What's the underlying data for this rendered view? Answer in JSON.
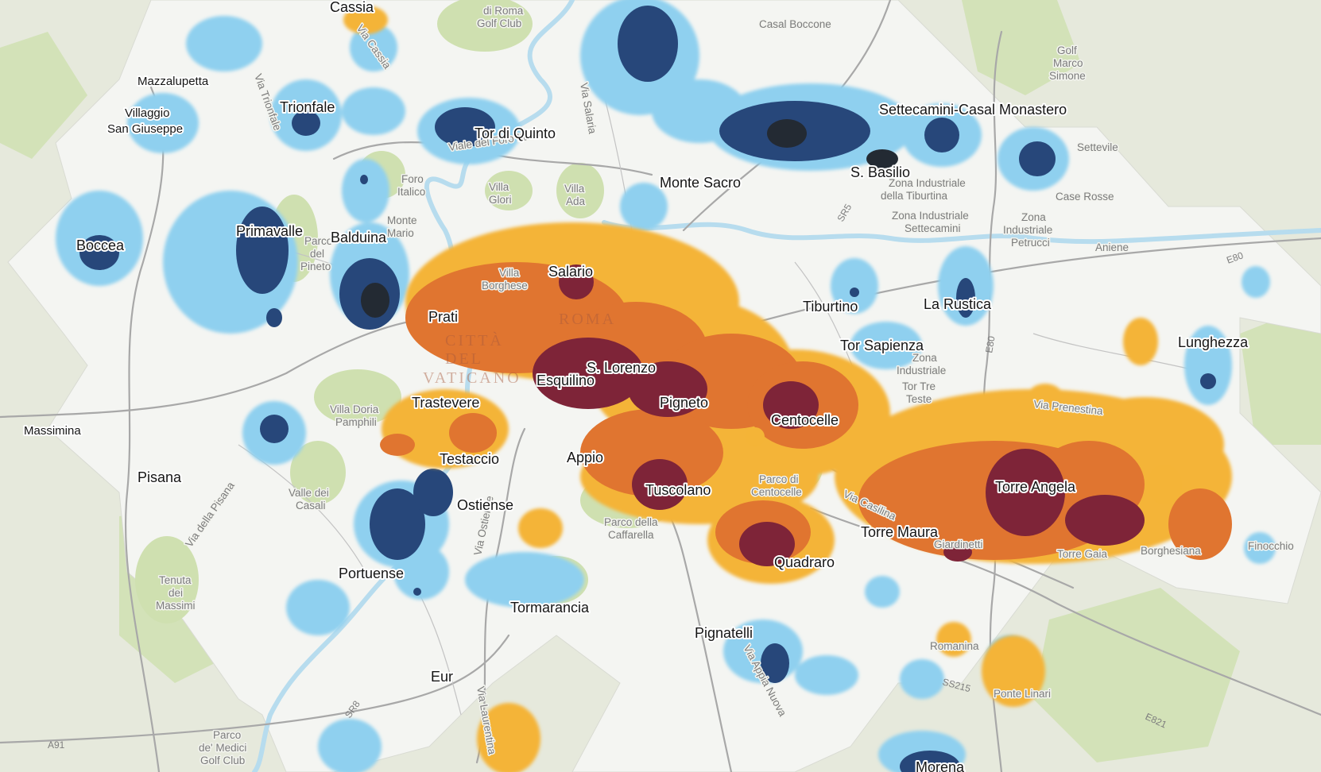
{
  "map": {
    "colors": {
      "outside": "#e6e9dc",
      "park": "#cfe0b0",
      "study_area": "#f4f5f2",
      "river": "#a9d4ea",
      "road": "#a6a6a6",
      "heat_high_4": "#7e2438",
      "heat_high_3": "#e07530",
      "heat_high_2": "#f4b437",
      "cold_1": "#8fd0ef",
      "cold_2": "#27477a",
      "cold_3": "#232a33"
    },
    "places": {
      "cassia": "Cassia",
      "mazzalupetta": "Mazzalupetta",
      "villaggio": "Villaggio",
      "san_giuseppe": "San Giuseppe",
      "trionfale": "Trionfale",
      "tor_di_quinto": "Tor di Quinto",
      "boccea": "Boccea",
      "primavalle": "Primavalle",
      "balduina": "Balduina",
      "monte_sacro": "Monte Sacro",
      "settecamini": "Settecamini-Casal Monastero",
      "s_basilio": "S. Basilio",
      "salario": "Salario",
      "prati": "Prati",
      "tiburtino": "Tiburtino",
      "la_rustica": "La Rustica",
      "tor_sapienza": "Tor Sapienza",
      "lunghezza": "Lunghezza",
      "s_lorenzo": "S. Lorenzo",
      "esquilino": "Esquilino",
      "pigneto": "Pigneto",
      "trastevere": "Trastevere",
      "centocelle": "Centocelle",
      "testaccio": "Testaccio",
      "appio": "Appio",
      "massimina": "Massimina",
      "pisana": "Pisana",
      "ostiense": "Ostiense",
      "tuscolano": "Tuscolano",
      "torre_angela": "Torre Angela",
      "torre_maura": "Torre Maura",
      "portuense": "Portuense",
      "quadraro": "Quadraro",
      "tormarancia": "Tormarancia",
      "pignatelli": "Pignatelli",
      "eur": "Eur",
      "morena": "Morena",
      "casal_boccone": "Casal Boccone",
      "settevile": "Settevile",
      "case_rosse": "Case Rosse",
      "fosso": "Finocchio",
      "ponte_linari": "Ponte Linari",
      "romanina": "Romanina",
      "via_prenestina": "Via Prenestina",
      "via_salaria": "Via Salaria",
      "via_appia_nuova": "Via Appia Nuova",
      "viale_foro_italico": "Viale del Foro Italico",
      "via_della_pisana": "Via della Pisana",
      "via_ostiense": "Via Ostiense",
      "via_laurentina": "Via Laurentina",
      "via_casilina": "Via Casilina",
      "via_trionfale": "Via Trionfale",
      "via_cassia": "Via Cassia",
      "roma": "ROMA",
      "citta_del_vaticano_1": "CITTÀ",
      "citta_del_vaticano_2": "DEL",
      "citta_del_vaticano_3": "VATICANO"
    },
    "parks": {
      "villa_borghese_1": "Villa",
      "villa_borghese_2": "Borghese",
      "villa_glori_1": "Villa",
      "villa_glori_2": "Glori",
      "villa_ada_1": "Villa",
      "villa_ada_2": "Ada",
      "foro_italico_1": "Foro",
      "foro_italico_2": "Italico",
      "monte_mario_1": "Monte",
      "monte_mario_2": "Mario",
      "pineto_1": "Parco",
      "pineto_2": "del",
      "pineto_3": "Pineto",
      "doria_pamphili_1": "Villa Doria",
      "doria_pamphili_2": "Pamphili",
      "valle_casali_1": "Valle dei",
      "valle_casali_2": "Casali",
      "caffarella_1": "Parco della",
      "caffarella_2": "Caffarella",
      "parco_centocelle_1": "Parco di",
      "parco_centocelle_2": "Centocelle",
      "tenuta_massimi_1": "Tenuta",
      "tenuta_massimi_2": "dei",
      "tenuta_massimi_3": "Massimi",
      "golf_roma_1": "di Roma",
      "golf_roma_2": "Golf Club",
      "golf_marco_1": "Golf",
      "golf_marco_2": "Marco",
      "golf_marco_3": "Simone",
      "parco_medici_1": "Parco",
      "parco_medici_2": "de' Medici",
      "parco_medici_3": "Golf Club",
      "zona_tiburtina_1": "Zona Industriale",
      "zona_tiburtina_2": "della Tiburtina",
      "zona_settecamini_1": "Zona Industriale",
      "zona_settecamini_2": "Settecamini",
      "zona_petrucci_1": "Zona",
      "zona_petrucci_2": "Industriale",
      "zona_petrucci_3": "Petrucci",
      "zona_tortre_1": "Zona",
      "zona_tortre_2": "Industriale",
      "zona_tortre_3": "Tor Tre",
      "zona_tortre_4": "Teste",
      "aniene": "Aniene",
      "tor_pignattara": "Torre Gaia",
      "borghesiana": "Borghesiana",
      "giardinetti": "Giardinetti"
    },
    "roads": {
      "e80": "E80",
      "e80b": "E80",
      "e821": "E821",
      "a91": "A91",
      "sr5": "SR5",
      "sr8": "SR8",
      "ss215": "SS215"
    }
  }
}
